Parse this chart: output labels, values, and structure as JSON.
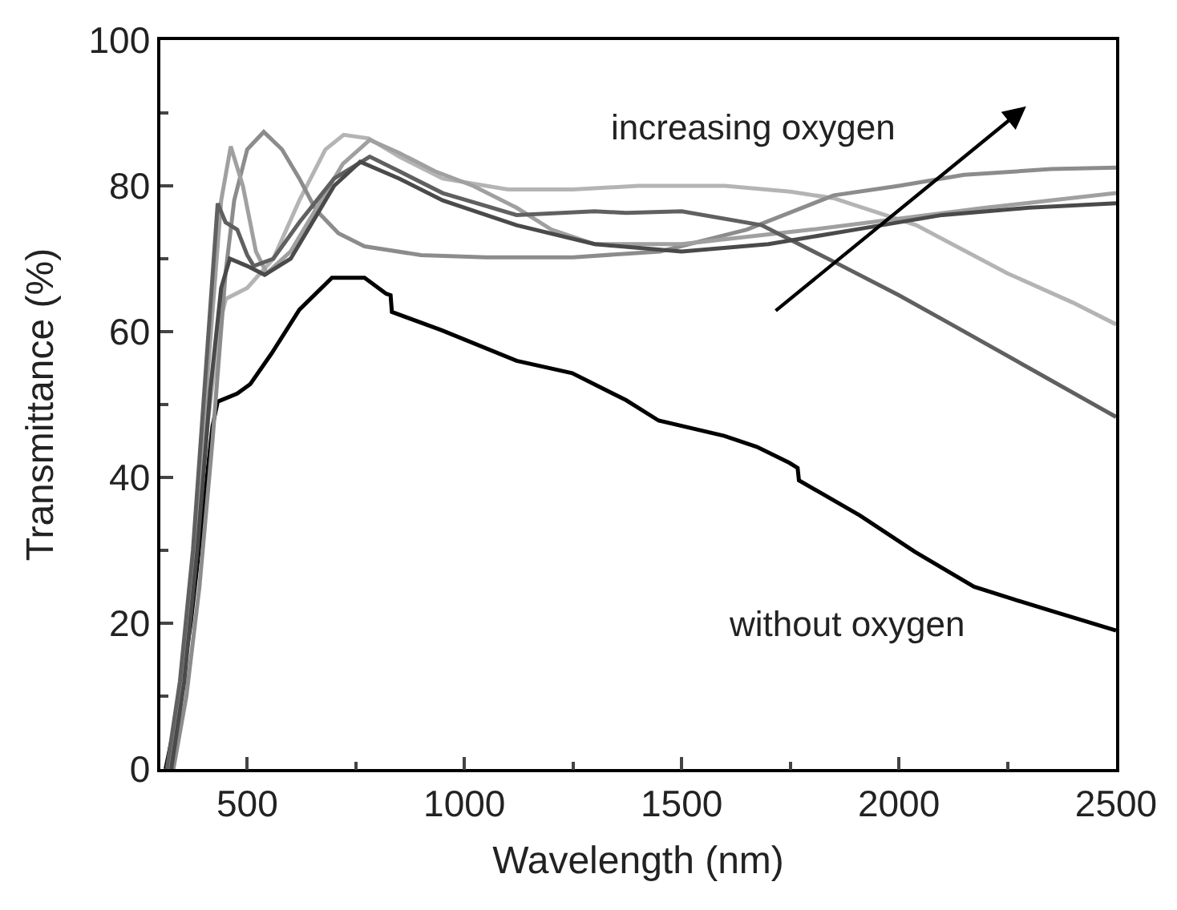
{
  "chart_data": {
    "type": "line",
    "xlabel": "Wavelength (nm)",
    "ylabel": "Transmittance (%)",
    "xlim": [
      300,
      2500
    ],
    "ylim": [
      0,
      100
    ],
    "xticks": [
      500,
      1000,
      1500,
      2000,
      2500
    ],
    "yticks": [
      0,
      20,
      40,
      60,
      80,
      100
    ],
    "marker": "none",
    "line_style": "solid",
    "annotations": [
      "increasing oxygen",
      "without oxygen"
    ],
    "series": [
      {
        "color": "#000000",
        "x": [
          312,
          340,
          370,
          400,
          420,
          432,
          477,
          507,
          556,
          620,
          695,
          770,
          820,
          830,
          833,
          947,
          1120,
          1248,
          1372,
          1447,
          1598,
          1673,
          1748,
          1767,
          1770,
          1910,
          2037,
          2173,
          2263,
          2400,
          2500
        ],
        "values": [
          0,
          8,
          20,
          36,
          47,
          50.4,
          51.5,
          52.8,
          57,
          63,
          67.4,
          67.4,
          65.2,
          65,
          62.7,
          60.2,
          56,
          54.3,
          50.6,
          47.8,
          45.7,
          44.2,
          42,
          41.3,
          39.6,
          34.8,
          29.8,
          25,
          23.3,
          20.8,
          19
        ]
      },
      {
        "color": "#b4b4b4",
        "x": [
          320,
          350,
          380,
          410,
          440,
          451,
          500,
          560,
          620,
          680,
          722,
          780,
          850,
          950,
          1100,
          1250,
          1400,
          1600,
          1750,
          1850,
          2040,
          2250,
          2400,
          2500
        ],
        "values": [
          0,
          12,
          28,
          48,
          62,
          64.5,
          66,
          70,
          78,
          85,
          87,
          86.5,
          84,
          81,
          79.5,
          79.5,
          80,
          80,
          79.2,
          78.3,
          74.6,
          68,
          64,
          61
        ]
      },
      {
        "color": "#8c8c8c",
        "x": [
          330,
          360,
          390,
          420,
          450,
          470,
          500,
          538,
          580,
          620,
          658,
          710,
          770,
          900,
          1050,
          1250,
          1450,
          1650,
          1850,
          2000,
          2150,
          2350,
          2500
        ],
        "values": [
          0,
          10,
          25,
          45,
          68,
          78,
          85,
          87.4,
          85,
          81,
          76.7,
          73.5,
          71.7,
          70.5,
          70.2,
          70.2,
          71,
          74,
          78.7,
          80,
          81.5,
          82.3,
          82.5
        ]
      },
      {
        "color": "#a0a0a0",
        "x": [
          320,
          350,
          380,
          410,
          440,
          462,
          490,
          520,
          545,
          600,
          660,
          720,
          782,
          850,
          932,
          1020,
          1120,
          1200,
          1300,
          1500,
          1800,
          2000,
          2200,
          2500
        ],
        "values": [
          0,
          12,
          30,
          55,
          78,
          85.4,
          80,
          71,
          68,
          71,
          77,
          83,
          86.3,
          84.5,
          82,
          80,
          77,
          74,
          72,
          72,
          74,
          75.5,
          77,
          79
        ]
      },
      {
        "color": "#606060",
        "x": [
          315,
          345,
          375,
          405,
          432,
          450,
          477,
          500,
          515,
          560,
          620,
          700,
          782,
          850,
          950,
          1120,
          1300,
          1372,
          1500,
          1684,
          1850,
          2000,
          2124,
          2300,
          2500
        ],
        "values": [
          0,
          12,
          30,
          55,
          77.6,
          75,
          74,
          70.5,
          69,
          70,
          75,
          81,
          84,
          82,
          79,
          76,
          76.5,
          76.3,
          76.5,
          74.6,
          69.6,
          65,
          60.9,
          55,
          48.3
        ]
      },
      {
        "color": "#4a4a4a",
        "x": [
          325,
          355,
          385,
          415,
          440,
          460,
          500,
          540,
          600,
          660,
          700,
          760,
          850,
          950,
          1120,
          1300,
          1500,
          1700,
          1900,
          2100,
          2300,
          2500
        ],
        "values": [
          0,
          12,
          30,
          52,
          66,
          70,
          69,
          67.8,
          70,
          76,
          80,
          83.3,
          81,
          78,
          74.6,
          72,
          71,
          72,
          74,
          76,
          77,
          77.6
        ]
      }
    ]
  }
}
